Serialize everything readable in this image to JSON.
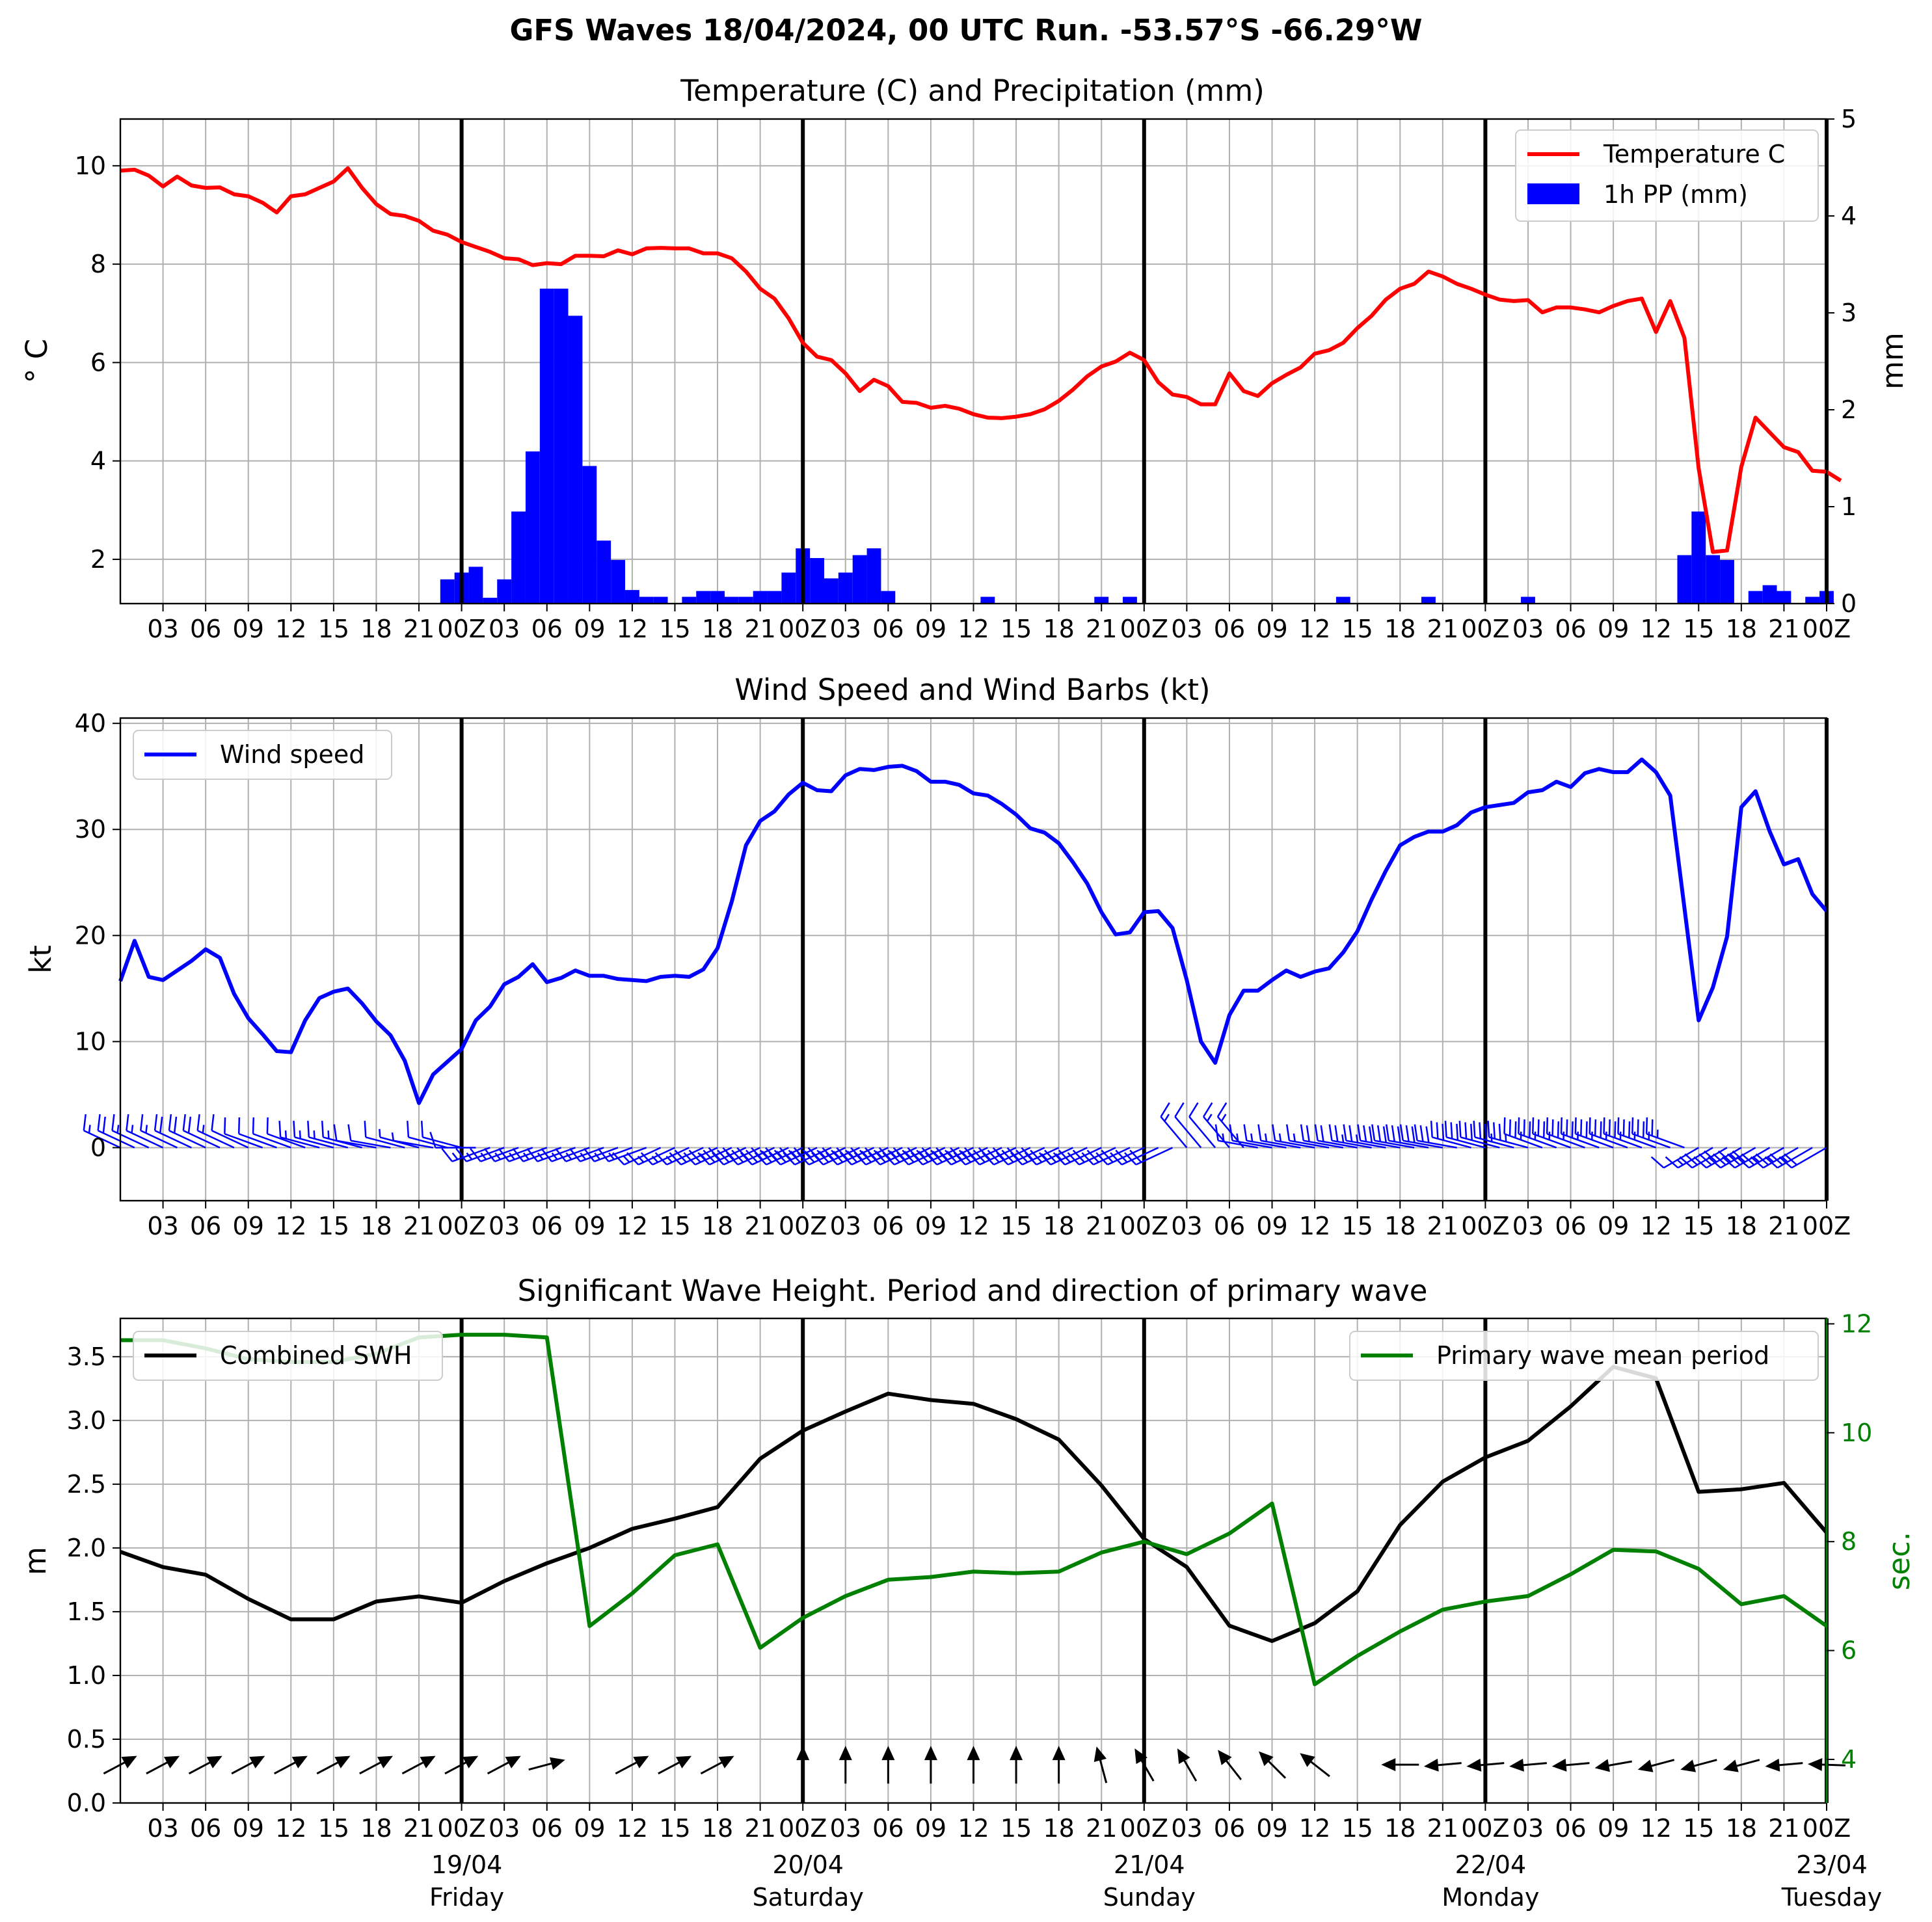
{
  "suptitle": "GFS Waves 18/04/2024, 00 UTC Run. -53.57°S -66.29°W",
  "x_tick_labels": [
    "03",
    "06",
    "09",
    "12",
    "15",
    "18",
    "21",
    "00Z",
    "03",
    "06",
    "09",
    "12",
    "15",
    "18",
    "21",
    "00Z",
    "03",
    "06",
    "09",
    "12",
    "15",
    "18",
    "21",
    "00Z",
    "03",
    "06",
    "09",
    "12",
    "15",
    "18",
    "21",
    "00Z",
    "03",
    "06",
    "09",
    "12",
    "15",
    "18",
    "21",
    "00Z"
  ],
  "day_labels": [
    {
      "date": "19/04",
      "weekday": "Friday"
    },
    {
      "date": "20/04",
      "weekday": "Saturday"
    },
    {
      "date": "21/04",
      "weekday": "Sunday"
    },
    {
      "date": "22/04",
      "weekday": "Monday"
    },
    {
      "date": "23/04",
      "weekday": "Tuesday"
    }
  ],
  "colors": {
    "temperature": "#ff0000",
    "precip": "#0000ff",
    "wind": "#0000ff",
    "swh": "#000000",
    "period": "#008000"
  },
  "chart_data": [
    {
      "type": "line",
      "title": "Temperature (C) and Precipitation (mm)",
      "ylabel": "$^\\circ$C",
      "ylabel_display": "° C",
      "ylabel_right": "mm",
      "x_unit": "hours since 18/04/2024 00 UTC",
      "xlim": [
        0,
        120
      ],
      "ylim": [
        1.1,
        10.95
      ],
      "ylim_right": [
        0,
        5
      ],
      "yticks": [
        2,
        4,
        6,
        8,
        10
      ],
      "yticks_right": [
        0,
        1,
        2,
        3,
        4,
        5
      ],
      "grid": true,
      "legend_position": "top-right",
      "series": [
        {
          "name": "Temperature C",
          "x_step_hours": 1,
          "values": [
            9.9,
            9.92,
            9.8,
            9.58,
            9.78,
            9.6,
            9.55,
            9.56,
            9.42,
            9.38,
            9.25,
            9.05,
            9.38,
            9.42,
            9.55,
            9.68,
            9.95,
            9.55,
            9.22,
            9.02,
            8.98,
            8.88,
            8.68,
            8.6,
            8.45,
            8.35,
            8.25,
            8.12,
            8.1,
            7.98,
            8.02,
            8.0,
            8.17,
            8.17,
            8.16,
            8.28,
            8.2,
            8.32,
            8.33,
            8.32,
            8.32,
            8.22,
            8.22,
            8.12,
            7.85,
            7.5,
            7.3,
            6.9,
            6.4,
            6.12,
            6.05,
            5.78,
            5.42,
            5.65,
            5.52,
            5.2,
            5.18,
            5.08,
            5.12,
            5.06,
            4.95,
            4.88,
            4.87,
            4.9,
            4.95,
            5.05,
            5.22,
            5.45,
            5.72,
            5.92,
            6.02,
            6.2,
            6.05,
            5.6,
            5.35,
            5.3,
            5.15,
            5.15,
            5.78,
            5.42,
            5.32,
            5.58,
            5.75,
            5.9,
            6.18,
            6.25,
            6.4,
            6.7,
            6.95,
            7.28,
            7.5,
            7.6,
            7.85,
            7.75,
            7.6,
            7.5,
            7.38,
            7.28,
            7.25,
            7.27,
            7.02,
            7.12,
            7.12,
            7.08,
            7.02,
            7.15,
            7.25,
            7.3,
            6.62,
            7.25,
            6.5,
            3.85,
            2.15,
            2.18,
            3.88,
            4.88,
            4.58,
            4.28,
            4.18,
            3.8,
            3.78,
            3.6
          ]
        },
        {
          "name": "1h PP (mm)",
          "type": "bar",
          "x_step_hours": 1,
          "values": [
            0,
            0,
            0,
            0,
            0,
            0,
            0,
            0,
            0,
            0,
            0,
            0,
            0,
            0,
            0,
            0,
            0,
            0,
            0,
            0,
            0,
            0,
            0.25,
            0.32,
            0.38,
            0.06,
            0.25,
            0.95,
            1.57,
            3.25,
            3.25,
            2.97,
            1.42,
            0.65,
            0.45,
            0.14,
            0.07,
            0.07,
            0,
            0.07,
            0.13,
            0.13,
            0.07,
            0.07,
            0.13,
            0.13,
            0.32,
            0.57,
            0.47,
            0.26,
            0.32,
            0.5,
            0.57,
            0.13,
            0,
            0,
            0,
            0,
            0,
            0,
            0.07,
            0,
            0,
            0,
            0,
            0,
            0,
            0,
            0.07,
            0,
            0.07,
            0,
            0,
            0,
            0,
            0,
            0,
            0,
            0,
            0,
            0,
            0,
            0,
            0,
            0,
            0.07,
            0,
            0,
            0,
            0,
            0,
            0.07,
            0,
            0,
            0,
            0,
            0,
            0,
            0.07,
            0,
            0,
            0,
            0,
            0,
            0,
            0,
            0,
            0,
            0,
            0.5,
            0.95,
            0.5,
            0.45,
            0,
            0.13,
            0.19,
            0.13,
            0,
            0.07,
            0.13
          ]
        }
      ]
    },
    {
      "type": "line",
      "title": "Wind Speed and Wind Barbs (kt)",
      "ylabel": "kt",
      "x_unit": "hours since 18/04/2024 00 UTC",
      "xlim": [
        0,
        120
      ],
      "ylim": [
        -5,
        40.5
      ],
      "yticks": [
        0,
        10,
        20,
        30,
        40
      ],
      "grid": true,
      "legend_position": "top-left",
      "series": [
        {
          "name": "Wind speed",
          "x_step_hours": 1,
          "values": [
            15.7,
            19.5,
            16.1,
            15.8,
            16.7,
            17.6,
            18.7,
            17.9,
            14.5,
            12.2,
            10.7,
            9.1,
            9.0,
            12.0,
            14.1,
            14.7,
            15.0,
            13.6,
            11.9,
            10.6,
            8.2,
            4.2,
            6.9,
            8.1,
            9.3,
            12.0,
            13.3,
            15.4,
            16.1,
            17.3,
            15.6,
            16.0,
            16.7,
            16.2,
            16.2,
            15.9,
            15.8,
            15.7,
            16.1,
            16.2,
            16.1,
            16.8,
            18.8,
            23.2,
            28.5,
            30.8,
            31.7,
            33.3,
            34.4,
            33.7,
            33.6,
            35.1,
            35.7,
            35.6,
            35.9,
            36.0,
            35.5,
            34.5,
            34.5,
            34.2,
            33.4,
            33.2,
            32.4,
            31.4,
            30.1,
            29.7,
            28.7,
            26.9,
            24.9,
            22.2,
            20.1,
            20.3,
            22.2,
            22.3,
            20.7,
            15.8,
            10.0,
            8.0,
            12.5,
            14.8,
            14.8,
            15.8,
            16.7,
            16.1,
            16.6,
            16.9,
            18.4,
            20.4,
            23.4,
            26.1,
            28.5,
            29.3,
            29.8,
            29.8,
            30.4,
            31.6,
            32.1,
            32.3,
            32.5,
            33.5,
            33.7,
            34.5,
            34.0,
            35.3,
            35.7,
            35.4,
            35.4,
            36.6,
            35.4,
            33.2,
            22.6,
            12.0,
            15.1,
            19.9,
            32.1,
            33.6,
            29.8,
            26.7,
            27.2,
            23.9,
            22.3
          ]
        }
      ],
      "barbs_from_direction_deg": [
        295,
        295,
        295,
        295,
        295,
        295,
        295,
        295,
        295,
        295,
        290,
        290,
        290,
        290,
        285,
        285,
        285,
        285,
        280,
        280,
        285,
        285,
        280,
        285,
        285,
        270,
        250,
        250,
        250,
        250,
        250,
        250,
        250,
        250,
        250,
        250,
        250,
        250,
        245,
        245,
        245,
        245,
        245,
        245,
        245,
        245,
        245,
        245,
        245,
        245,
        245,
        245,
        245,
        245,
        245,
        245,
        245,
        245,
        245,
        245,
        245,
        245,
        245,
        245,
        245,
        245,
        245,
        245,
        245,
        245,
        245,
        245,
        245,
        245,
        245,
        320,
        320,
        320,
        320,
        320,
        280,
        280,
        280,
        280,
        280,
        280,
        280,
        280,
        280,
        280,
        280,
        280,
        280,
        280,
        280,
        285,
        285,
        285,
        285,
        285,
        290,
        290,
        290,
        290,
        290,
        290,
        290,
        290,
        290,
        290,
        290,
        240,
        240,
        240,
        240,
        240,
        240,
        240,
        240,
        240,
        240
      ]
    },
    {
      "type": "line",
      "title": "Significant Wave Height. Period and direction of primary wave",
      "ylabel": "m",
      "ylabel_right": "sec.",
      "x_unit": "hours since 18/04/2024 00 UTC",
      "xlim": [
        0,
        120
      ],
      "ylim": [
        0,
        3.8
      ],
      "ylim_right": [
        3.2,
        12.1
      ],
      "yticks": [
        0.0,
        0.5,
        1.0,
        1.5,
        2.0,
        2.5,
        3.0,
        3.5
      ],
      "yticks_right": [
        4,
        6,
        8,
        10,
        12
      ],
      "grid": true,
      "series": [
        {
          "name": "Combined SWH",
          "legend_position": "top-left",
          "x": [
            0,
            3,
            6,
            9,
            12,
            15,
            18,
            21,
            24,
            27,
            30,
            33,
            36,
            39,
            42,
            45,
            48,
            51,
            54,
            57,
            60,
            63,
            66,
            69,
            72,
            75,
            78,
            81,
            84,
            87,
            90,
            93,
            96,
            99,
            102,
            105,
            108,
            111,
            114,
            117,
            120
          ],
          "values": [
            1.97,
            1.85,
            1.79,
            1.6,
            1.44,
            1.44,
            1.58,
            1.62,
            1.57,
            1.74,
            1.88,
            2.0,
            2.15,
            2.23,
            2.32,
            2.7,
            2.92,
            3.07,
            3.21,
            3.16,
            3.13,
            3.01,
            2.85,
            2.49,
            2.07,
            1.85,
            1.39,
            1.27,
            1.41,
            1.66,
            2.18,
            2.52,
            2.71,
            2.84,
            3.11,
            3.42,
            3.33,
            2.44,
            2.46,
            2.51,
            2.12
          ]
        },
        {
          "name": "Primary wave mean period",
          "axis": "right",
          "legend_position": "top-right",
          "x": [
            0,
            3,
            6,
            9,
            12,
            15,
            18,
            21,
            24,
            27,
            30,
            33,
            36,
            39,
            42,
            45,
            48,
            51,
            54,
            57,
            60,
            63,
            66,
            69,
            72,
            75,
            78,
            81,
            84,
            87,
            90,
            93,
            96,
            99,
            102,
            105,
            108,
            111,
            114,
            117,
            120
          ],
          "values": [
            11.7,
            11.7,
            11.55,
            11.35,
            11.3,
            11.3,
            11.45,
            11.75,
            11.8,
            11.8,
            11.75,
            6.45,
            7.05,
            7.75,
            7.95,
            6.05,
            6.6,
            7.0,
            7.3,
            7.35,
            7.45,
            7.42,
            7.45,
            7.8,
            8.0,
            7.77,
            8.15,
            8.7,
            5.38,
            5.9,
            6.35,
            6.75,
            6.9,
            7.0,
            7.4,
            7.85,
            7.82,
            7.5,
            6.85,
            7.0,
            6.45
          ]
        }
      ],
      "wave_arrows_to_direction_deg": [
        62,
        62,
        62,
        62,
        62,
        62,
        62,
        62,
        62,
        62,
        75,
        null,
        62,
        62,
        62,
        null,
        0,
        0,
        0,
        0,
        0,
        0,
        0,
        345,
        330,
        330,
        322,
        315,
        308,
        null,
        270,
        265,
        265,
        265,
        265,
        260,
        255,
        255,
        255,
        265,
        272
      ]
    }
  ]
}
